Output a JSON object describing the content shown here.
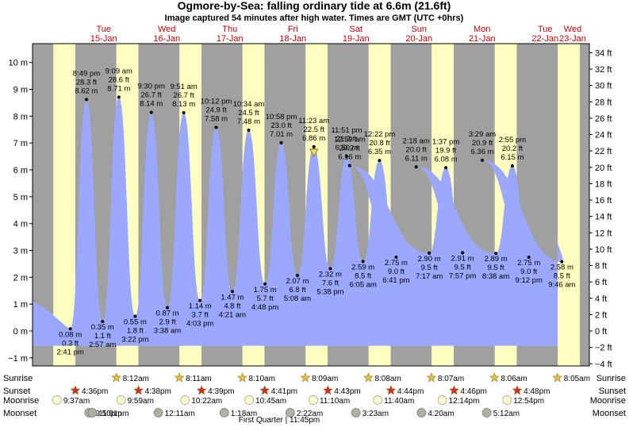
{
  "title": "Ogmore-by-Sea: falling  ordinary tide at 6.6m (21.6ft)",
  "subtitle": "Image captured 54 minutes after high water. Times are GMT (UTC +0hrs)",
  "footer_note": "First Quarter | 11:45pm",
  "colors": {
    "tide_fill": "#9aa8ff",
    "day": "#ffffc0",
    "night": "#a0a0a0",
    "weekday": "#cc0000",
    "star": "#e0c040",
    "sunset_star": "#d03020",
    "moon_light": "#ffffcc",
    "moon_dark": "#b0b0a0"
  },
  "days": [
    {
      "dow": "Tue",
      "date": "15-Jan"
    },
    {
      "dow": "Wed",
      "date": "16-Jan"
    },
    {
      "dow": "Thu",
      "date": "17-Jan"
    },
    {
      "dow": "Fri",
      "date": "18-Jan"
    },
    {
      "dow": "Sat",
      "date": "19-Jan"
    },
    {
      "dow": "Sun",
      "date": "20-Jan"
    },
    {
      "dow": "Mon",
      "date": "21-Jan"
    },
    {
      "dow": "Tue",
      "date": "22-Jan"
    },
    {
      "dow": "Wed",
      "date": "23-Jan"
    }
  ],
  "row_labels": {
    "sunrise": "Sunrise",
    "sunset": "Sunset",
    "moonrise": "Moonrise",
    "moonset": "Moonset"
  },
  "sunrise": [
    "8:12am",
    "8:11am",
    "8:10am",
    "8:09am",
    "8:08am",
    "8:07am",
    "8:06am",
    "8:05am"
  ],
  "sunset": [
    "4:36pm",
    "4:38pm",
    "4:39pm",
    "4:41pm",
    "4:43pm",
    "4:44pm",
    "4:46pm",
    "4:48pm"
  ],
  "moonrise": [
    "9:37am",
    "9:59am",
    "10:22am",
    "10:45am",
    "11:10am",
    "11:40am",
    "12:14pm",
    "12:54pm"
  ],
  "moonset": [
    "9:50pm",
    "11:01pm",
    "12:11am",
    "1:18am",
    "2:22am",
    "3:23am",
    "4:20am",
    "5:12am"
  ],
  "chart_data": {
    "type": "area",
    "title": "Ogmore-by-Sea: falling  ordinary tide at 6.6m (21.6ft)",
    "ylabel_left_unit": "m",
    "ylabel_right_unit": "ft",
    "ylim_m": [
      -1.3,
      10.7
    ],
    "yticks_m": [
      "−1 m",
      "0 m",
      "1 m",
      "2 m",
      "3 m",
      "4 m",
      "5 m",
      "6 m",
      "7 m",
      "8 m",
      "9 m",
      "10 m"
    ],
    "yticks_ft": [
      "−4 ft",
      "−2 ft",
      "0 ft",
      "2 ft",
      "4 ft",
      "6 ft",
      "8 ft",
      "10 ft",
      "12 ft",
      "14 ft",
      "16 ft",
      "18 ft",
      "20 ft",
      "22 ft",
      "24 ft",
      "26 ft",
      "28 ft",
      "30 ft",
      "32 ft",
      "34 ft"
    ],
    "current_level_m": 6.6,
    "extremes": [
      {
        "type": "low",
        "time": "2:41 pm",
        "ft": "0.3 ft",
        "m": "0.08 m",
        "value": 0.08
      },
      {
        "type": "high",
        "time": "8:49 pm",
        "ft": "28.3 ft",
        "m": "8.62 m",
        "value": 8.62
      },
      {
        "type": "low",
        "time": "2:57 am",
        "ft": "1.1 ft",
        "m": "0.35 m",
        "value": 0.35
      },
      {
        "type": "high",
        "time": "9:09 am",
        "ft": "28.6 ft",
        "m": "8.71 m",
        "value": 8.71
      },
      {
        "type": "low",
        "time": "3:22 pm",
        "ft": "1.8 ft",
        "m": "0.55 m",
        "value": 0.55
      },
      {
        "type": "high",
        "time": "9:30 pm",
        "ft": "26.7 ft",
        "m": "8.14 m",
        "value": 8.14
      },
      {
        "type": "low",
        "time": "3:38 am",
        "ft": "2.9 ft",
        "m": "0.87 m",
        "value": 0.87
      },
      {
        "type": "high",
        "time": "9:51 am",
        "ft": "26.7 ft",
        "m": "8.13 m",
        "value": 8.13
      },
      {
        "type": "low",
        "time": "4:03 pm",
        "ft": "3.7 ft",
        "m": "1.14 m",
        "value": 1.14
      },
      {
        "type": "high",
        "time": "10:12 pm",
        "ft": "24.9 ft",
        "m": "7.58 m",
        "value": 7.58
      },
      {
        "type": "low",
        "time": "4:21 am",
        "ft": "4.8 ft",
        "m": "1.47 m",
        "value": 1.47
      },
      {
        "type": "high",
        "time": "10:34 am",
        "ft": "24.5 ft",
        "m": "7.48 m",
        "value": 7.48
      },
      {
        "type": "low",
        "time": "4:48 pm",
        "ft": "5.7 ft",
        "m": "1.75 m",
        "value": 1.75
      },
      {
        "type": "high",
        "time": "10:58 pm",
        "ft": "23.0 ft",
        "m": "7.01 m",
        "value": 7.01
      },
      {
        "type": "low",
        "time": "5:08 am",
        "ft": "6.8 ft",
        "m": "2.07 m",
        "value": 2.07
      },
      {
        "type": "high",
        "time": "11:23 am",
        "ft": "22.5 ft",
        "m": "6.86 m",
        "value": 6.86
      },
      {
        "type": "low",
        "time": "5:38 pm",
        "ft": "7.6 ft",
        "m": "2.32 m",
        "value": 2.32
      },
      {
        "type": "high",
        "time": "11:51 pm",
        "ft": "21.3 ft",
        "m": "6.50 m",
        "value": 6.5
      },
      {
        "type": "low",
        "time": "6:05 am",
        "ft": "8.5 ft",
        "m": "2.59 m",
        "value": 2.59
      },
      {
        "type": "high",
        "time": "12:22 pm",
        "ft": "20.8 ft",
        "m": "6.35 m",
        "value": 6.35
      },
      {
        "type": "low",
        "time": "6:41 pm",
        "ft": "9.0 ft",
        "m": "2.75 m",
        "value": 2.75
      },
      {
        "type": "high",
        "time": "12:59 am",
        "ft": "20.2 ft",
        "m": "6.16 m",
        "value": 6.16
      },
      {
        "type": "low",
        "time": "7:17 am",
        "ft": "9.5 ft",
        "m": "2.90 m",
        "value": 2.9
      },
      {
        "type": "high",
        "time": "1:37 pm",
        "ft": "19.9 ft",
        "m": "6.08 m",
        "value": 6.08
      },
      {
        "type": "low",
        "time": "7:57 pm",
        "ft": "9.5 ft",
        "m": "2.91 m",
        "value": 2.91
      },
      {
        "type": "high",
        "time": "2:18 am",
        "ft": "20.0 ft",
        "m": "6.11 m",
        "value": 6.11
      },
      {
        "type": "low",
        "time": "8:38 am",
        "ft": "9.5 ft",
        "m": "2.89 m",
        "value": 2.89
      },
      {
        "type": "high",
        "time": "2:55 pm",
        "ft": "20.2 ft",
        "m": "6.15 m",
        "value": 6.15
      },
      {
        "type": "low",
        "time": "9:12 pm",
        "ft": "9.0 ft",
        "m": "2.75 m",
        "value": 2.75
      },
      {
        "type": "high",
        "time": "3:29 am",
        "ft": "20.9 ft",
        "m": "6.36 m",
        "value": 6.36
      },
      {
        "type": "low",
        "time": "9:46 am",
        "ft": "8.5 ft",
        "m": "2.58 m",
        "value": 2.58
      }
    ]
  }
}
